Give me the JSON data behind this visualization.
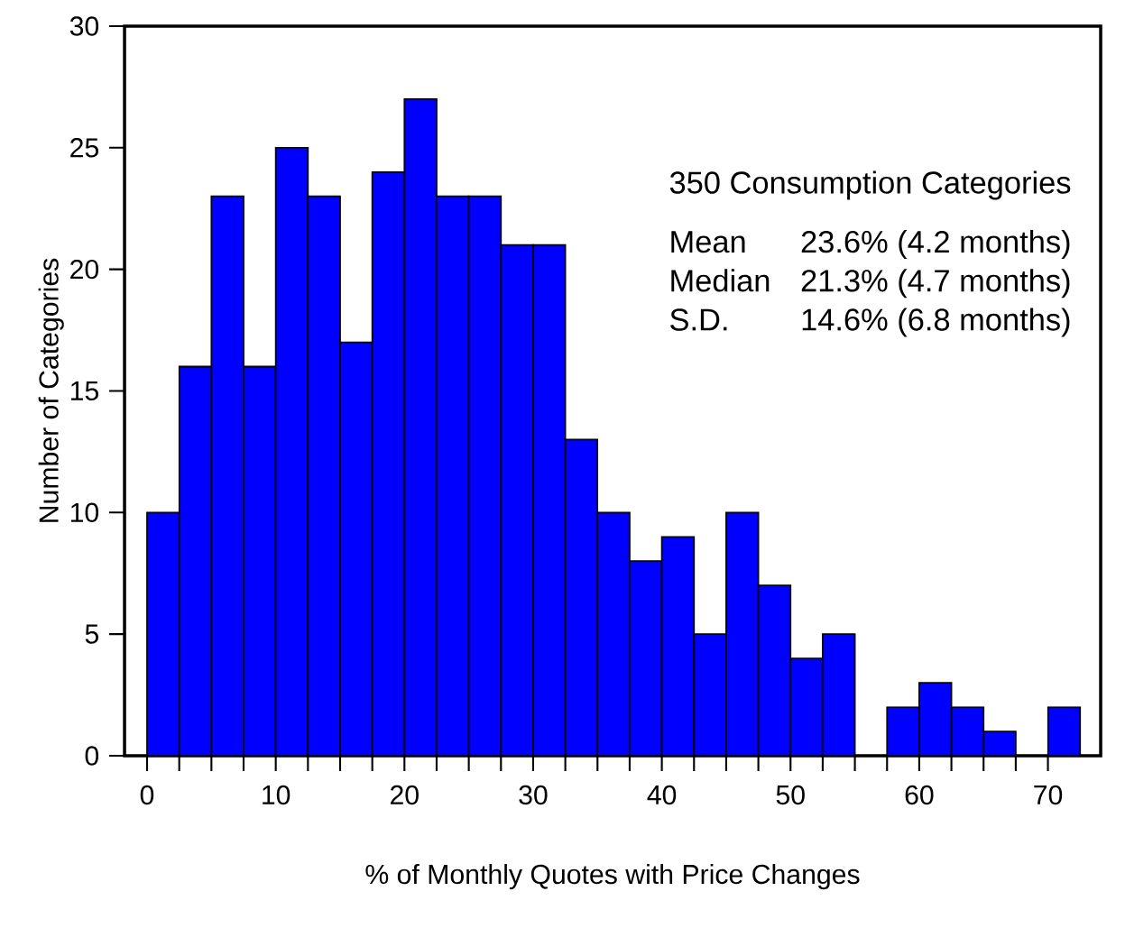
{
  "chart_data": {
    "type": "histogram",
    "bins": [
      0,
      2.5,
      5,
      7.5,
      10,
      12.5,
      15,
      17.5,
      20,
      22.5,
      25,
      27.5,
      30,
      32.5,
      35,
      37.5,
      40,
      42.5,
      45,
      47.5,
      50,
      52.5,
      55,
      57.5,
      60,
      62.5,
      65,
      67.5,
      70,
      72.5
    ],
    "values": [
      10,
      16,
      23,
      16,
      25,
      23,
      17,
      24,
      27,
      23,
      23,
      21,
      21,
      13,
      10,
      8,
      9,
      5,
      10,
      7,
      4,
      5,
      0,
      2,
      3,
      2,
      1,
      0,
      2
    ],
    "color": "#0000ff",
    "xlabel": "% of Monthly Quotes with Price Changes",
    "ylabel": "Number of Categories",
    "xlim": [
      -1.75,
      74.1
    ],
    "ylim": [
      0,
      30
    ],
    "xticks": [
      0,
      10,
      20,
      30,
      40,
      50,
      60,
      70
    ],
    "yticks": [
      0,
      5,
      10,
      15,
      20,
      25,
      30
    ],
    "grid": false,
    "annotations": [
      "350 Consumption Categories",
      "Mean",
      "23.6% (4.2 months)",
      "Median",
      "21.3% (4.7 months)",
      "S.D.",
      "14.6% (6.8 months)"
    ]
  }
}
